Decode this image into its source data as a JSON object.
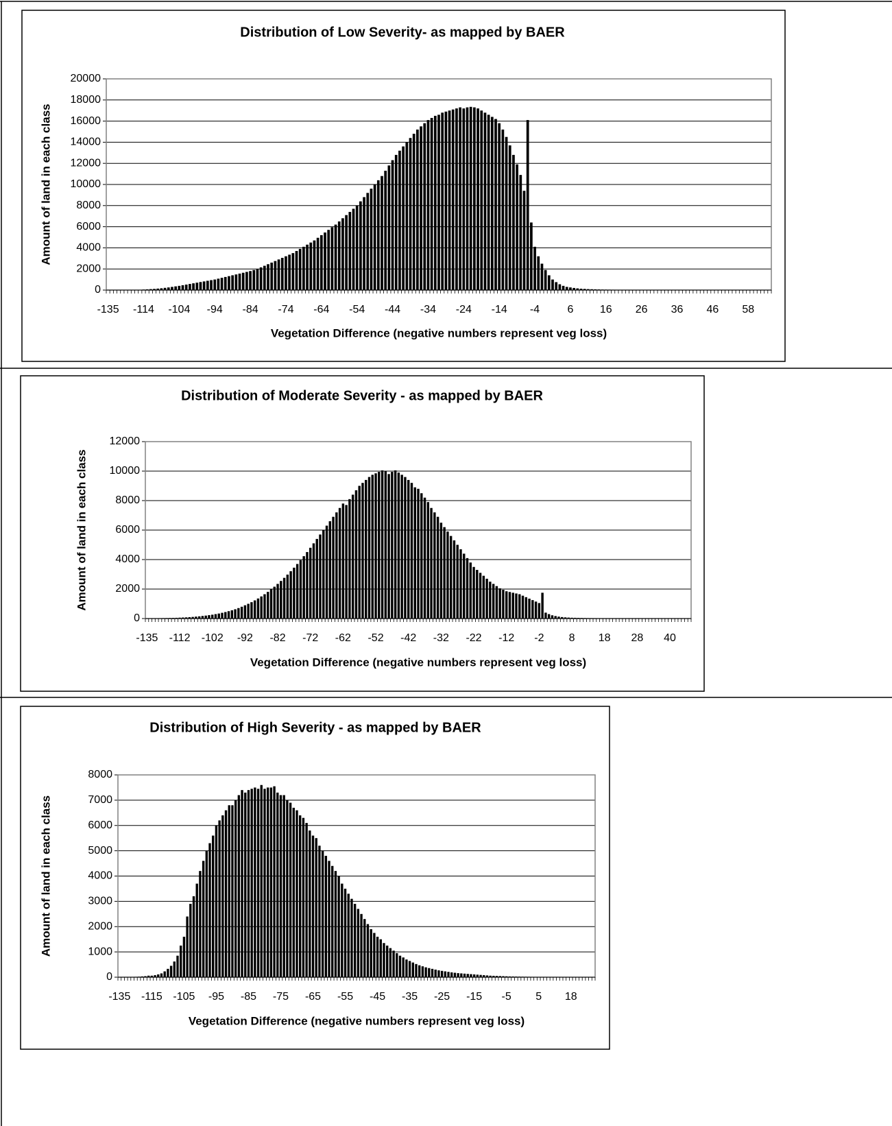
{
  "chart_data": [
    {
      "type": "bar",
      "title": "Distribution of Low Severity- as mapped by BAER",
      "x_label": "Vegetation Difference (negative numbers represent veg loss)",
      "y_label": "Amount of land in each class",
      "color": "#000000",
      "grid": true,
      "ylim": [
        0,
        20000
      ],
      "yticks": [
        0,
        2000,
        4000,
        6000,
        8000,
        10000,
        12000,
        14000,
        16000,
        18000,
        20000
      ],
      "categories": [
        "-135",
        null,
        null,
        null,
        null,
        null,
        null,
        null,
        null,
        null,
        "-114",
        null,
        null,
        null,
        null,
        null,
        null,
        null,
        null,
        null,
        "-104",
        null,
        null,
        null,
        null,
        null,
        null,
        null,
        null,
        null,
        "-94",
        null,
        null,
        null,
        null,
        null,
        null,
        null,
        null,
        null,
        "-84",
        null,
        null,
        null,
        null,
        null,
        null,
        null,
        null,
        null,
        "-74",
        null,
        null,
        null,
        null,
        null,
        null,
        null,
        null,
        null,
        "-64",
        null,
        null,
        null,
        null,
        null,
        null,
        null,
        null,
        null,
        "-54",
        null,
        null,
        null,
        null,
        null,
        null,
        null,
        null,
        null,
        "-44",
        null,
        null,
        null,
        null,
        null,
        null,
        null,
        null,
        null,
        "-34",
        null,
        null,
        null,
        null,
        null,
        null,
        null,
        null,
        null,
        "-24",
        null,
        null,
        null,
        null,
        null,
        null,
        null,
        null,
        null,
        "-14",
        null,
        null,
        null,
        null,
        null,
        null,
        null,
        null,
        null,
        "-4",
        null,
        null,
        null,
        null,
        null,
        null,
        null,
        null,
        null,
        "6",
        null,
        null,
        null,
        null,
        null,
        null,
        null,
        null,
        null,
        "16",
        null,
        null,
        null,
        null,
        null,
        null,
        null,
        null,
        null,
        "26",
        null,
        null,
        null,
        null,
        null,
        null,
        null,
        null,
        null,
        "36",
        null,
        null,
        null,
        null,
        null,
        null,
        null,
        null,
        null,
        "46",
        null,
        null,
        null,
        null,
        null,
        null,
        null,
        null,
        null,
        "58",
        null,
        null,
        null,
        null,
        null,
        null
      ],
      "values": [
        0,
        0,
        0,
        0,
        0,
        0,
        5,
        10,
        20,
        30,
        50,
        70,
        90,
        110,
        140,
        170,
        210,
        250,
        300,
        350,
        400,
        460,
        520,
        580,
        640,
        700,
        760,
        820,
        880,
        940,
        1000,
        1080,
        1160,
        1240,
        1320,
        1400,
        1480,
        1560,
        1640,
        1720,
        1800,
        1900,
        2000,
        2150,
        2300,
        2450,
        2600,
        2750,
        2900,
        3050,
        3200,
        3350,
        3500,
        3700,
        3900,
        4100,
        4300,
        4500,
        4700,
        4950,
        5200,
        5450,
        5700,
        5950,
        6200,
        6500,
        6800,
        7100,
        7400,
        7700,
        8000,
        8400,
        8800,
        9200,
        9600,
        10000,
        10400,
        10800,
        11300,
        11800,
        12300,
        12800,
        13200,
        13600,
        14000,
        14400,
        14800,
        15200,
        15500,
        15800,
        16100,
        16300,
        16500,
        16600,
        16800,
        16900,
        17000,
        17100,
        17200,
        17300,
        17200,
        17300,
        17350,
        17300,
        17200,
        17000,
        16800,
        16600,
        16400,
        16200,
        15800,
        15200,
        14500,
        13700,
        12800,
        11900,
        10900,
        9400,
        16100,
        6400,
        4100,
        3200,
        2500,
        1900,
        1400,
        1000,
        750,
        550,
        400,
        300,
        250,
        200,
        160,
        130,
        110,
        90,
        80,
        70,
        60,
        50,
        45,
        40,
        35,
        30,
        28,
        25,
        22,
        20,
        18,
        16,
        15,
        14,
        13,
        12,
        11,
        10,
        9,
        8,
        7,
        6,
        5,
        5,
        5,
        4,
        4,
        4,
        3,
        3,
        3,
        3,
        2,
        2,
        2,
        2,
        2,
        2,
        1,
        1,
        1,
        1,
        1,
        1,
        1,
        1,
        1,
        1,
        1
      ]
    },
    {
      "type": "bar",
      "title": "Distribution of Moderate Severity - as mapped by BAER",
      "x_label": "Vegetation Difference (negative numbers represent veg loss)",
      "y_label": "Amount of land in each class",
      "color": "#000000",
      "grid": true,
      "ylim": [
        0,
        12000
      ],
      "yticks": [
        0,
        2000,
        4000,
        6000,
        8000,
        10000,
        12000
      ],
      "categories": [
        "-135",
        null,
        null,
        null,
        null,
        null,
        null,
        null,
        null,
        null,
        "-112",
        null,
        null,
        null,
        null,
        null,
        null,
        null,
        null,
        null,
        "-102",
        null,
        null,
        null,
        null,
        null,
        null,
        null,
        null,
        null,
        "-92",
        null,
        null,
        null,
        null,
        null,
        null,
        null,
        null,
        null,
        "-82",
        null,
        null,
        null,
        null,
        null,
        null,
        null,
        null,
        null,
        "-72",
        null,
        null,
        null,
        null,
        null,
        null,
        null,
        null,
        null,
        "-62",
        null,
        null,
        null,
        null,
        null,
        null,
        null,
        null,
        null,
        "-52",
        null,
        null,
        null,
        null,
        null,
        null,
        null,
        null,
        null,
        "-42",
        null,
        null,
        null,
        null,
        null,
        null,
        null,
        null,
        null,
        "-32",
        null,
        null,
        null,
        null,
        null,
        null,
        null,
        null,
        null,
        "-22",
        null,
        null,
        null,
        null,
        null,
        null,
        null,
        null,
        null,
        "-12",
        null,
        null,
        null,
        null,
        null,
        null,
        null,
        null,
        null,
        "-2",
        null,
        null,
        null,
        null,
        null,
        null,
        null,
        null,
        null,
        "8",
        null,
        null,
        null,
        null,
        null,
        null,
        null,
        null,
        null,
        "18",
        null,
        null,
        null,
        null,
        null,
        null,
        null,
        null,
        null,
        "28",
        null,
        null,
        null,
        null,
        null,
        null,
        null,
        null,
        null,
        "40",
        null,
        null,
        null,
        null,
        null,
        null
      ],
      "values": [
        0,
        10,
        15,
        20,
        25,
        30,
        35,
        40,
        45,
        50,
        60,
        70,
        80,
        95,
        110,
        130,
        150,
        175,
        200,
        230,
        260,
        300,
        340,
        390,
        440,
        500,
        560,
        630,
        710,
        800,
        900,
        1000,
        1110,
        1230,
        1360,
        1500,
        1650,
        1810,
        1980,
        2160,
        2350,
        2550,
        2760,
        2980,
        3210,
        3450,
        3700,
        3960,
        4230,
        4510,
        4800,
        5100,
        5400,
        5700,
        6000,
        6300,
        6600,
        6900,
        7200,
        7500,
        7800,
        7700,
        8100,
        8400,
        8700,
        9000,
        9200,
        9400,
        9600,
        9750,
        9850,
        9950,
        10050,
        10000,
        9800,
        9950,
        10050,
        9900,
        9750,
        9600,
        9400,
        9200,
        8900,
        8800,
        8500,
        8200,
        7900,
        7500,
        7200,
        6900,
        6500,
        6200,
        5900,
        5600,
        5300,
        5000,
        4700,
        4400,
        4100,
        3800,
        3500,
        3300,
        3100,
        2900,
        2700,
        2500,
        2350,
        2200,
        2050,
        1950,
        1850,
        1800,
        1750,
        1700,
        1650,
        1550,
        1450,
        1350,
        1250,
        1150,
        1050,
        1750,
        400,
        300,
        220,
        170,
        130,
        100,
        80,
        65,
        55,
        50,
        45,
        40,
        35,
        30,
        28,
        26,
        24,
        22,
        20,
        18,
        16,
        14,
        12,
        10,
        9,
        8,
        7,
        6,
        5,
        5,
        4,
        4,
        3,
        3,
        3,
        2,
        2,
        2,
        2,
        1,
        1,
        1,
        1,
        1,
        1
      ]
    },
    {
      "type": "bar",
      "title": "Distribution of High Severity - as mapped by BAER",
      "x_label": "Vegetation Difference (negative numbers represent veg loss)",
      "y_label": "Amount of land in each class",
      "color": "#000000",
      "grid": true,
      "ylim": [
        0,
        8000
      ],
      "yticks": [
        0,
        1000,
        2000,
        3000,
        4000,
        5000,
        6000,
        7000,
        8000
      ],
      "categories": [
        "-135",
        null,
        null,
        null,
        null,
        null,
        null,
        null,
        null,
        null,
        "-115",
        null,
        null,
        null,
        null,
        null,
        null,
        null,
        null,
        null,
        "-105",
        null,
        null,
        null,
        null,
        null,
        null,
        null,
        null,
        null,
        "-95",
        null,
        null,
        null,
        null,
        null,
        null,
        null,
        null,
        null,
        "-85",
        null,
        null,
        null,
        null,
        null,
        null,
        null,
        null,
        null,
        "-75",
        null,
        null,
        null,
        null,
        null,
        null,
        null,
        null,
        null,
        "-65",
        null,
        null,
        null,
        null,
        null,
        null,
        null,
        null,
        null,
        "-55",
        null,
        null,
        null,
        null,
        null,
        null,
        null,
        null,
        null,
        "-45",
        null,
        null,
        null,
        null,
        null,
        null,
        null,
        null,
        null,
        "-35",
        null,
        null,
        null,
        null,
        null,
        null,
        null,
        null,
        null,
        "-25",
        null,
        null,
        null,
        null,
        null,
        null,
        null,
        null,
        null,
        "-15",
        null,
        null,
        null,
        null,
        null,
        null,
        null,
        null,
        null,
        "-5",
        null,
        null,
        null,
        null,
        null,
        null,
        null,
        null,
        null,
        "5",
        null,
        null,
        null,
        null,
        null,
        null,
        null,
        null,
        null,
        "18",
        null,
        null,
        null,
        null,
        null,
        null,
        null
      ],
      "values": [
        0,
        0,
        0,
        5,
        10,
        15,
        20,
        30,
        40,
        60,
        60,
        80,
        110,
        150,
        230,
        330,
        450,
        620,
        850,
        1250,
        1600,
        2400,
        2900,
        3200,
        3700,
        4200,
        4600,
        5000,
        5300,
        5600,
        6000,
        6200,
        6400,
        6600,
        6800,
        6800,
        7000,
        7200,
        7400,
        7300,
        7400,
        7450,
        7500,
        7450,
        7600,
        7450,
        7500,
        7500,
        7550,
        7300,
        7200,
        7200,
        7000,
        6900,
        6700,
        6600,
        6400,
        6300,
        6100,
        5800,
        5600,
        5500,
        5200,
        5000,
        4800,
        4600,
        4400,
        4200,
        4000,
        3700,
        3500,
        3300,
        3100,
        2900,
        2700,
        2500,
        2300,
        2100,
        1900,
        1750,
        1600,
        1500,
        1350,
        1250,
        1150,
        1050,
        950,
        850,
        780,
        700,
        640,
        580,
        520,
        470,
        430,
        390,
        360,
        330,
        300,
        270,
        250,
        230,
        210,
        190,
        175,
        160,
        150,
        140,
        130,
        120,
        110,
        100,
        90,
        80,
        70,
        60,
        55,
        50,
        45,
        40,
        35,
        30,
        28,
        25,
        22,
        20,
        18,
        16,
        14,
        12,
        10,
        9,
        8,
        7,
        6,
        5,
        5,
        4,
        4,
        3,
        3,
        2,
        2,
        2,
        1,
        1,
        1,
        1
      ]
    }
  ]
}
